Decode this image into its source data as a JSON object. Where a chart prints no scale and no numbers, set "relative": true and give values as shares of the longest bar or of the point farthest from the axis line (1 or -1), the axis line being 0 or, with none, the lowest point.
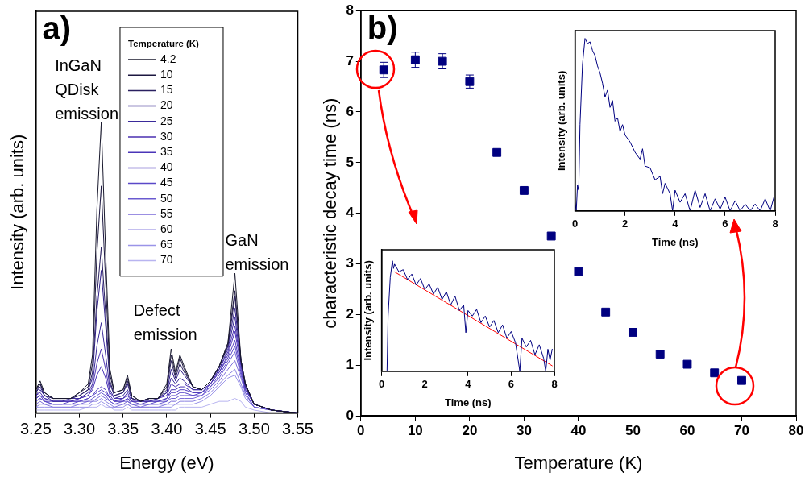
{
  "chart_data": [
    {
      "type": "line",
      "title": "a)",
      "xlabel": "Energy (eV)",
      "ylabel": "Intensity (arb. units)",
      "relative": true,
      "xlim": [
        3.25,
        3.55
      ],
      "xticks": [
        3.25,
        {
          "value": 3.3,
          "label": "3.30"
        },
        3.35,
        {
          "value": 3.4,
          "label": "3.40"
        },
        3.45,
        {
          "value": 3.5,
          "label": "3.50"
        },
        3.55
      ],
      "tick_labels": "x",
      "grid": false,
      "marker": "none",
      "legend": "top",
      "legend_title": "Temperature (K)",
      "annotations": [
        "InGaN QDisk emission",
        "Defect emission",
        "GaN emission"
      ],
      "x": [
        3.25,
        3.255,
        3.26,
        3.27,
        3.28,
        3.29,
        3.3,
        3.31,
        3.315,
        3.32,
        3.325,
        3.33,
        3.335,
        3.34,
        3.35,
        3.355,
        3.36,
        3.37,
        3.38,
        3.39,
        3.4,
        3.405,
        3.41,
        3.415,
        3.42,
        3.43,
        3.44,
        3.45,
        3.46,
        3.47,
        3.478,
        3.485,
        3.49,
        3.5,
        3.52,
        3.55
      ],
      "series": [
        {
          "name": "4.2",
          "color": "#1a1a2e",
          "values": [
            0.08,
            0.11,
            0.07,
            0.05,
            0.05,
            0.05,
            0.07,
            0.1,
            0.2,
            0.7,
            1.0,
            0.55,
            0.15,
            0.07,
            0.08,
            0.13,
            0.06,
            0.04,
            0.05,
            0.05,
            0.1,
            0.22,
            0.14,
            0.2,
            0.16,
            0.09,
            0.08,
            0.11,
            0.16,
            0.24,
            0.48,
            0.18,
            0.1,
            0.03,
            0.01,
            0
          ]
        },
        {
          "name": "10",
          "color": "#1c1740",
          "values": [
            0.08,
            0.1,
            0.07,
            0.05,
            0.05,
            0.05,
            0.07,
            0.09,
            0.17,
            0.55,
            0.78,
            0.45,
            0.13,
            0.07,
            0.08,
            0.12,
            0.06,
            0.04,
            0.05,
            0.05,
            0.09,
            0.2,
            0.13,
            0.19,
            0.15,
            0.09,
            0.08,
            0.11,
            0.16,
            0.24,
            0.42,
            0.18,
            0.1,
            0.03,
            0.01,
            0
          ]
        },
        {
          "name": "15",
          "color": "#2a2060",
          "values": [
            0.07,
            0.1,
            0.06,
            0.05,
            0.05,
            0.05,
            0.06,
            0.08,
            0.14,
            0.4,
            0.57,
            0.34,
            0.11,
            0.06,
            0.07,
            0.11,
            0.05,
            0.04,
            0.05,
            0.05,
            0.08,
            0.18,
            0.12,
            0.17,
            0.14,
            0.09,
            0.08,
            0.11,
            0.16,
            0.23,
            0.4,
            0.18,
            0.1,
            0.03,
            0.01,
            0
          ]
        },
        {
          "name": "20",
          "color": "#30208a",
          "values": [
            0.07,
            0.09,
            0.06,
            0.05,
            0.05,
            0.05,
            0.06,
            0.08,
            0.12,
            0.35,
            0.49,
            0.3,
            0.1,
            0.06,
            0.07,
            0.1,
            0.05,
            0.04,
            0.05,
            0.05,
            0.07,
            0.15,
            0.11,
            0.15,
            0.13,
            0.09,
            0.08,
            0.11,
            0.16,
            0.23,
            0.36,
            0.18,
            0.1,
            0.03,
            0.01,
            0
          ]
        },
        {
          "name": "25",
          "color": "#3a2a9a",
          "values": [
            0.06,
            0.08,
            0.06,
            0.04,
            0.04,
            0.05,
            0.05,
            0.07,
            0.1,
            0.23,
            0.31,
            0.2,
            0.08,
            0.05,
            0.06,
            0.08,
            0.05,
            0.04,
            0.04,
            0.05,
            0.07,
            0.12,
            0.1,
            0.12,
            0.11,
            0.08,
            0.08,
            0.11,
            0.15,
            0.22,
            0.33,
            0.17,
            0.09,
            0.03,
            0.01,
            0
          ]
        },
        {
          "name": "30",
          "color": "#4a2fb0",
          "values": [
            0.06,
            0.07,
            0.05,
            0.04,
            0.04,
            0.04,
            0.05,
            0.06,
            0.09,
            0.17,
            0.22,
            0.15,
            0.07,
            0.05,
            0.05,
            0.07,
            0.04,
            0.04,
            0.04,
            0.05,
            0.06,
            0.1,
            0.09,
            0.1,
            0.1,
            0.08,
            0.08,
            0.1,
            0.15,
            0.21,
            0.3,
            0.17,
            0.09,
            0.03,
            0.01,
            0
          ]
        },
        {
          "name": "35",
          "color": "#4a35b8",
          "values": [
            0.05,
            0.06,
            0.05,
            0.04,
            0.04,
            0.04,
            0.05,
            0.06,
            0.08,
            0.13,
            0.16,
            0.12,
            0.06,
            0.04,
            0.05,
            0.06,
            0.04,
            0.04,
            0.04,
            0.04,
            0.05,
            0.08,
            0.08,
            0.09,
            0.09,
            0.07,
            0.07,
            0.1,
            0.14,
            0.2,
            0.28,
            0.16,
            0.09,
            0.03,
            0.01,
            0
          ]
        },
        {
          "name": "40",
          "color": "#5540c0",
          "values": [
            0.05,
            0.06,
            0.04,
            0.04,
            0.04,
            0.04,
            0.04,
            0.05,
            0.06,
            0.08,
            0.09,
            0.08,
            0.05,
            0.04,
            0.04,
            0.05,
            0.04,
            0.03,
            0.04,
            0.04,
            0.05,
            0.07,
            0.07,
            0.08,
            0.08,
            0.07,
            0.07,
            0.1,
            0.14,
            0.19,
            0.25,
            0.15,
            0.08,
            0.03,
            0.01,
            0
          ]
        },
        {
          "name": "45",
          "color": "#5a48c8",
          "values": [
            0.04,
            0.05,
            0.04,
            0.03,
            0.03,
            0.04,
            0.04,
            0.05,
            0.06,
            0.07,
            0.08,
            0.07,
            0.05,
            0.04,
            0.04,
            0.05,
            0.03,
            0.03,
            0.03,
            0.04,
            0.04,
            0.06,
            0.06,
            0.07,
            0.07,
            0.06,
            0.07,
            0.09,
            0.13,
            0.18,
            0.23,
            0.14,
            0.08,
            0.03,
            0.01,
            0
          ]
        },
        {
          "name": "50",
          "color": "#6a5ad0",
          "values": [
            0.04,
            0.05,
            0.04,
            0.03,
            0.03,
            0.03,
            0.04,
            0.04,
            0.05,
            0.06,
            0.07,
            0.06,
            0.04,
            0.03,
            0.04,
            0.04,
            0.03,
            0.03,
            0.03,
            0.03,
            0.04,
            0.05,
            0.05,
            0.06,
            0.06,
            0.06,
            0.06,
            0.09,
            0.12,
            0.17,
            0.21,
            0.13,
            0.07,
            0.02,
            0.01,
            0
          ]
        },
        {
          "name": "55",
          "color": "#7a6ad8",
          "values": [
            0.03,
            0.04,
            0.03,
            0.03,
            0.03,
            0.03,
            0.03,
            0.04,
            0.04,
            0.05,
            0.06,
            0.05,
            0.04,
            0.03,
            0.03,
            0.04,
            0.03,
            0.02,
            0.03,
            0.03,
            0.03,
            0.04,
            0.04,
            0.05,
            0.05,
            0.05,
            0.06,
            0.08,
            0.11,
            0.15,
            0.18,
            0.12,
            0.07,
            0.02,
            0.01,
            0
          ]
        },
        {
          "name": "60",
          "color": "#8a80e0",
          "values": [
            0.02,
            0.03,
            0.03,
            0.02,
            0.02,
            0.02,
            0.03,
            0.03,
            0.04,
            0.04,
            0.05,
            0.04,
            0.03,
            0.02,
            0.03,
            0.03,
            0.02,
            0.02,
            0.02,
            0.02,
            0.03,
            0.03,
            0.03,
            0.04,
            0.04,
            0.04,
            0.05,
            0.07,
            0.1,
            0.13,
            0.15,
            0.1,
            0.06,
            0.02,
            0.01,
            0
          ]
        },
        {
          "name": "65",
          "color": "#9a94e8",
          "values": [
            0.02,
            0.02,
            0.02,
            0.02,
            0.02,
            0.02,
            0.02,
            0.02,
            0.03,
            0.03,
            0.04,
            0.03,
            0.02,
            0.02,
            0.02,
            0.03,
            0.02,
            0.02,
            0.02,
            0.02,
            0.02,
            0.02,
            0.03,
            0.03,
            0.03,
            0.03,
            0.04,
            0.06,
            0.09,
            0.12,
            0.13,
            0.09,
            0.05,
            0.02,
            0.01,
            0
          ]
        },
        {
          "name": "70",
          "color": "#b8b4f0",
          "values": [
            0.01,
            0.01,
            0.01,
            0.01,
            0.01,
            0.01,
            0.01,
            0.02,
            0.02,
            0.02,
            0.03,
            0.02,
            0.02,
            0.01,
            0.01,
            0.02,
            0.01,
            0.01,
            0.01,
            0.01,
            0.01,
            0.01,
            0.01,
            0.02,
            0.02,
            0.02,
            0.02,
            0.03,
            0.04,
            0.04,
            0.05,
            0.04,
            0.02,
            0.01,
            0,
            0
          ]
        }
      ]
    },
    {
      "type": "scatter",
      "title": "b)",
      "xlabel": "Temperature (K)",
      "ylabel": "characteristic decay time (ns)",
      "xlim": [
        0,
        80
      ],
      "xticks": [
        0,
        10,
        20,
        30,
        40,
        50,
        60,
        70,
        80
      ],
      "ylim": [
        0,
        8
      ],
      "yticks": [
        0,
        1,
        2,
        3,
        4,
        5,
        6,
        7,
        8
      ],
      "grid": false,
      "marker": "square",
      "legend": false,
      "series": [
        {
          "color": "#000080",
          "x": [
            4.2,
            10,
            15,
            20,
            25,
            30,
            35,
            40,
            45,
            50,
            55,
            60,
            65,
            70
          ],
          "values": [
            6.83,
            7.03,
            7.0,
            6.6,
            5.2,
            4.45,
            3.55,
            2.85,
            2.05,
            1.65,
            1.22,
            1.02,
            0.85,
            0.7
          ],
          "errors": [
            0.15,
            0.15,
            0.15,
            0.13,
            null,
            null,
            null,
            null,
            null,
            null,
            null,
            null,
            null,
            null
          ]
        }
      ]
    },
    {
      "type": "line",
      "xlabel": "Time (ns)",
      "ylabel": "Intensity (arb. units)",
      "relative": true,
      "xlim": [
        0,
        8
      ],
      "xticks": [
        0,
        2,
        4,
        6,
        8
      ],
      "tick_labels": "x",
      "grid": false,
      "marker": "none",
      "legend": false,
      "series": [
        {
          "color": "#000080",
          "x": [
            0,
            0.05,
            0.1,
            0.15,
            0.2,
            0.3,
            0.4,
            0.5,
            0.6,
            0.7,
            0.8,
            0.9,
            1.0,
            1.1,
            1.2,
            1.3,
            1.4,
            1.5,
            1.6,
            1.7,
            1.8,
            1.9,
            2.0,
            2.2,
            2.4,
            2.6,
            2.7,
            2.8,
            3.0,
            3.2,
            3.4,
            3.5,
            3.6,
            3.8,
            3.9,
            4.0,
            4.2,
            4.4,
            4.6,
            4.8,
            5.0,
            5.2,
            5.4,
            5.6,
            5.8,
            6.0,
            6.2,
            6.4,
            6.6,
            6.8,
            7.0,
            7.2,
            7.4,
            7.6,
            7.8,
            7.95
          ],
          "values": [
            0.05,
            0,
            0.15,
            0.12,
            0.5,
            0.85,
            1.0,
            0.97,
            0.98,
            0.93,
            0.9,
            0.84,
            0.8,
            0.74,
            0.66,
            0.7,
            0.6,
            0.64,
            0.52,
            0.54,
            0.46,
            0.5,
            0.44,
            0.4,
            0.34,
            0.3,
            0.36,
            0.26,
            0.25,
            0.18,
            0.2,
            0.1,
            0.16,
            0.1,
            0,
            0.12,
            0.05,
            0.1,
            0,
            0.12,
            0.02,
            0.1,
            0,
            0.07,
            0.01,
            0.08,
            0,
            0.06,
            0,
            0.04,
            0,
            0.04,
            0,
            0.07,
            0,
            0.08
          ]
        }
      ]
    },
    {
      "type": "line",
      "xlabel": "Time (ns)",
      "ylabel": "Intensity (arb. units)",
      "relative": true,
      "xlim": [
        0,
        8
      ],
      "xticks": [
        0,
        2,
        4,
        6,
        8
      ],
      "tick_labels": "x",
      "grid": false,
      "marker": "none",
      "legend": false,
      "series": [
        {
          "color": "#000080",
          "x": [
            0.25,
            0.3,
            0.4,
            0.5,
            0.55,
            0.6,
            0.8,
            1.0,
            1.2,
            1.4,
            1.6,
            1.8,
            2.0,
            2.2,
            2.4,
            2.6,
            2.8,
            3.0,
            3.2,
            3.4,
            3.6,
            3.8,
            3.9,
            4.0,
            4.2,
            4.4,
            4.6,
            4.8,
            5.0,
            5.2,
            5.4,
            5.6,
            5.8,
            6.0,
            6.2,
            6.4,
            6.5,
            6.7,
            6.9,
            7.1,
            7.3,
            7.5,
            7.6,
            7.7,
            7.8,
            7.9
          ],
          "values": [
            0,
            0.5,
            0.85,
            1.0,
            0.93,
            0.97,
            0.9,
            0.92,
            0.83,
            0.88,
            0.78,
            0.84,
            0.74,
            0.79,
            0.7,
            0.76,
            0.65,
            0.72,
            0.6,
            0.68,
            0.55,
            0.6,
            0.35,
            0.55,
            0.5,
            0.56,
            0.44,
            0.5,
            0.4,
            0.46,
            0.35,
            0.42,
            0.3,
            0.36,
            0.26,
            0,
            0.3,
            0.22,
            0.28,
            0.15,
            0.24,
            0.12,
            0,
            0.2,
            0.1,
            0.2
          ]
        },
        {
          "type": "line",
          "color": "#ff0000",
          "x": [
            0.6,
            7.9
          ],
          "values": [
            0.9,
            0.05
          ]
        }
      ]
    }
  ]
}
